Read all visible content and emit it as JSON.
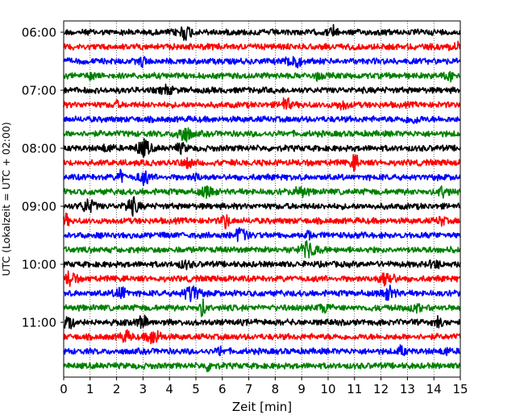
{
  "chart_data": {
    "type": "line",
    "title": "",
    "xlabel": "Zeit  [min]",
    "ylabel": "UTC (Lokalzeit = UTC + 02:00)",
    "xlim": [
      0,
      15
    ],
    "x_ticks": [
      "0",
      "1",
      "2",
      "3",
      "4",
      "5",
      "6",
      "7",
      "8",
      "9",
      "10",
      "11",
      "12",
      "13",
      "14",
      "15"
    ],
    "y_ticks": [
      "06:00",
      "07:00",
      "08:00",
      "09:00",
      "10:00",
      "11:00"
    ],
    "y_tick_rows": [
      0,
      4,
      8,
      12,
      16,
      20
    ],
    "grid": "vertical dotted at every minute",
    "legend": "none",
    "trace_colors": [
      "#000000",
      "#ff0000",
      "#0000ff",
      "#008000"
    ],
    "series": [
      {
        "start": "06:00",
        "color": "#000000"
      },
      {
        "start": "06:15",
        "color": "#ff0000"
      },
      {
        "start": "06:30",
        "color": "#0000ff"
      },
      {
        "start": "06:45",
        "color": "#008000"
      },
      {
        "start": "07:00",
        "color": "#000000"
      },
      {
        "start": "07:15",
        "color": "#ff0000"
      },
      {
        "start": "07:30",
        "color": "#0000ff"
      },
      {
        "start": "07:45",
        "color": "#008000"
      },
      {
        "start": "08:00",
        "color": "#000000"
      },
      {
        "start": "08:15",
        "color": "#ff0000"
      },
      {
        "start": "08:30",
        "color": "#0000ff"
      },
      {
        "start": "08:45",
        "color": "#008000"
      },
      {
        "start": "09:00",
        "color": "#000000"
      },
      {
        "start": "09:15",
        "color": "#ff0000"
      },
      {
        "start": "09:30",
        "color": "#0000ff"
      },
      {
        "start": "09:45",
        "color": "#008000"
      },
      {
        "start": "10:00",
        "color": "#000000"
      },
      {
        "start": "10:15",
        "color": "#ff0000"
      },
      {
        "start": "10:30",
        "color": "#0000ff"
      },
      {
        "start": "10:45",
        "color": "#008000"
      },
      {
        "start": "11:00",
        "color": "#000000"
      },
      {
        "start": "11:15",
        "color": "#ff0000"
      },
      {
        "start": "11:30",
        "color": "#0000ff"
      },
      {
        "start": "11:45",
        "color": "#008000"
      }
    ]
  }
}
